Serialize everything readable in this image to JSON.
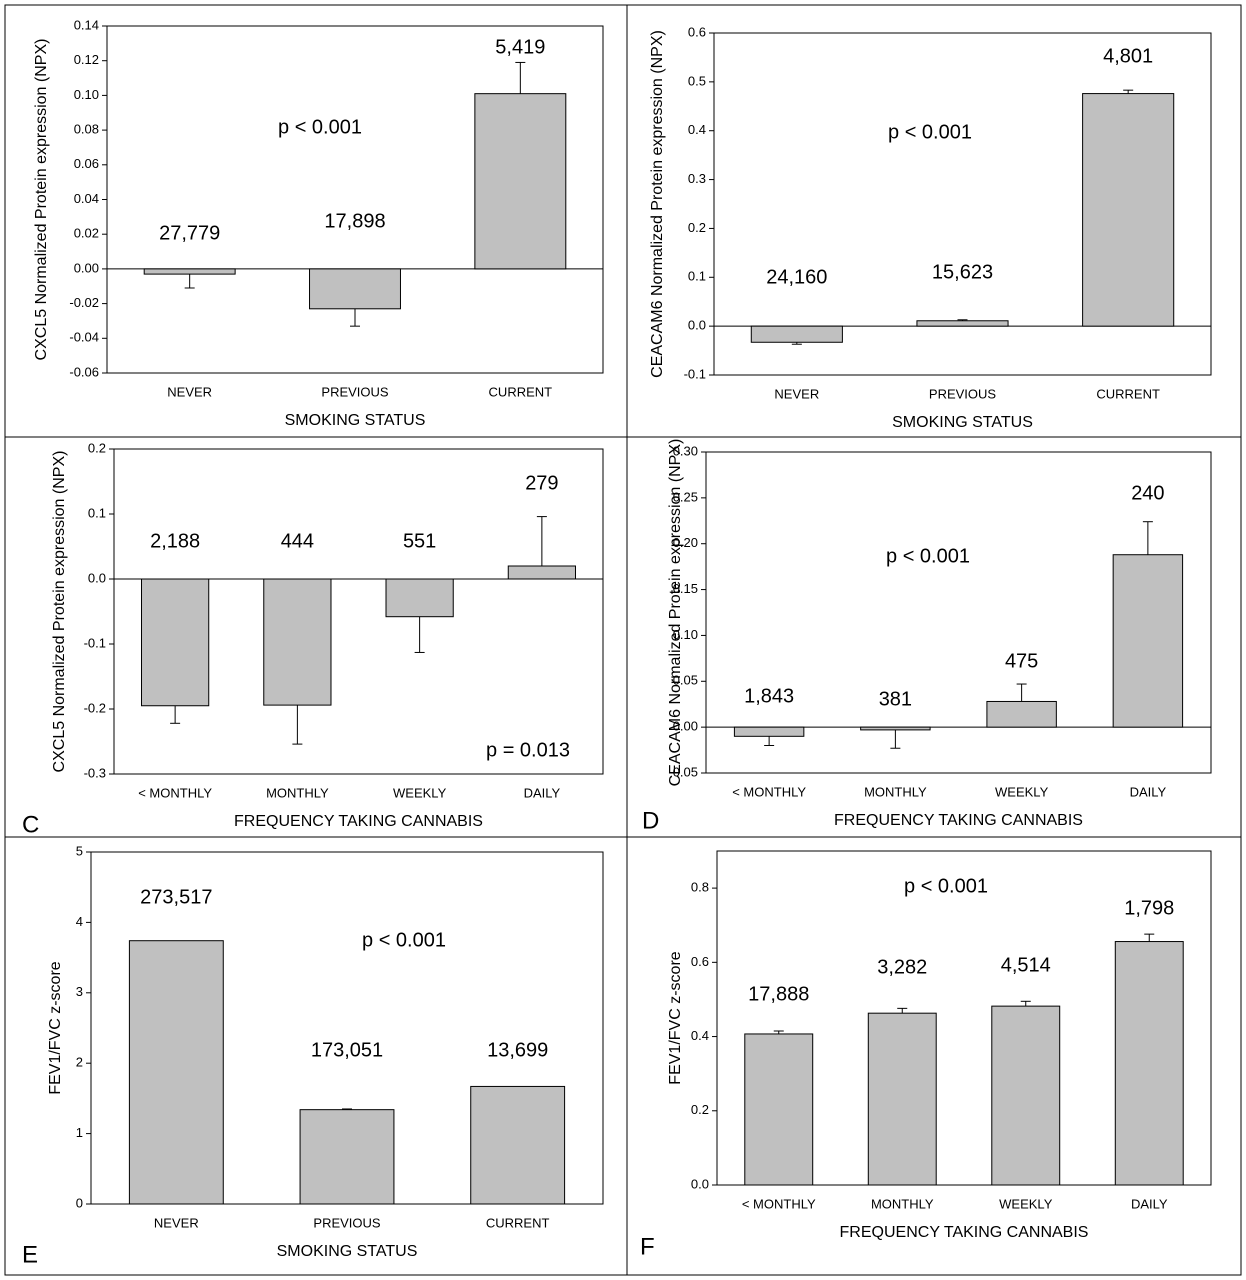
{
  "chart_data": [
    {
      "type": "bar",
      "xlabel": "SMOKING STATUS",
      "ylabel": "CXCL5 Normalized Protein expression (NPX)",
      "categories": [
        "NEVER",
        "PREVIOUS",
        "CURRENT"
      ],
      "values": [
        -0.003,
        -0.023,
        0.101
      ],
      "errors": [
        0.008,
        0.01,
        0.018
      ],
      "bar_labels": [
        "27,779",
        "17,898",
        "5,419"
      ],
      "annotation": "p < 0.001",
      "color": "#c0c0c0",
      "ylim": [
        -0.06,
        0.14
      ],
      "yticks": [
        -0.06,
        -0.04,
        -0.02,
        {
          "value": 0,
          "label": "0.00"
        },
        0.02,
        0.04,
        0.06,
        0.08,
        {
          "value": 0.1,
          "label": "0.10"
        },
        0.12,
        0.14
      ]
    },
    {
      "type": "bar",
      "xlabel": "SMOKING STATUS",
      "ylabel": "CEACAM6 Normalized Protein expression (NPX)",
      "categories": [
        "NEVER",
        "PREVIOUS",
        "CURRENT"
      ],
      "values": [
        -0.033,
        0.011,
        0.476
      ],
      "errors": [
        0.004,
        0.002,
        0.007
      ],
      "bar_labels": [
        "24,160",
        "15,623",
        "4,801"
      ],
      "annotation": "p < 0.001",
      "color": "#c0c0c0",
      "ylim": [
        -0.1,
        0.6
      ],
      "yticks": [
        -0.1,
        {
          "value": 0,
          "label": "0.0"
        },
        0.1,
        0.2,
        0.3,
        0.4,
        0.5,
        0.6
      ]
    },
    {
      "type": "bar",
      "panel_label": "C",
      "xlabel": "FREQUENCY TAKING CANNABIS",
      "ylabel": "CXCL5 Normalized Protein expression (NPX)",
      "categories": [
        "< MONTHLY",
        "MONTHLY",
        "WEEKLY",
        "DAILY"
      ],
      "values": [
        -0.195,
        -0.194,
        -0.058,
        0.02
      ],
      "errors": [
        0.027,
        0.06,
        0.055,
        0.076
      ],
      "bar_labels": [
        "2,188",
        "444",
        "551",
        "279"
      ],
      "annotation": "p = 0.013",
      "color": "#c0c0c0",
      "ylim": [
        -0.3,
        0.2
      ],
      "yticks": [
        -0.3,
        -0.2,
        -0.1,
        {
          "value": 0,
          "label": "0.0"
        },
        0.1,
        0.2
      ]
    },
    {
      "type": "bar",
      "panel_label": "D",
      "xlabel": "FREQUENCY TAKING CANNABIS",
      "ylabel": "CEACAM6 Normalized Protein expression (NPX)",
      "categories": [
        "< MONTHLY",
        "MONTHLY",
        "WEEKLY",
        "DAILY"
      ],
      "values": [
        -0.01,
        -0.003,
        0.028,
        0.188
      ],
      "errors": [
        0.01,
        0.02,
        0.019,
        0.036
      ],
      "bar_labels": [
        "1,843",
        "381",
        "475",
        "240"
      ],
      "annotation": "p < 0.001",
      "color": "#c0c0c0",
      "ylim": [
        -0.05,
        0.3
      ],
      "yticks": [
        -0.05,
        {
          "value": 0,
          "label": "0.00"
        },
        0.05,
        {
          "value": 0.1,
          "label": "0.10"
        },
        0.15,
        {
          "value": 0.2,
          "label": "0.20"
        },
        0.25,
        {
          "value": 0.3,
          "label": "0.30"
        }
      ]
    },
    {
      "type": "bar",
      "panel_label": "E",
      "xlabel": "SMOKING STATUS",
      "ylabel": "FEV1/FVC z-score",
      "categories": [
        "NEVER",
        "PREVIOUS",
        "CURRENT"
      ],
      "values": [
        3.74,
        1.34,
        1.67
      ],
      "errors": [
        0,
        0.01,
        0
      ],
      "bar_labels": [
        "273,517",
        "173,051",
        "13,699"
      ],
      "annotation": "p < 0.001",
      "color": "#c0c0c0",
      "ylim": [
        0,
        5
      ],
      "yticks": [
        0,
        1,
        2,
        3,
        4,
        5
      ]
    },
    {
      "type": "bar",
      "panel_label": "F",
      "xlabel": "FREQUENCY TAKING CANNABIS",
      "ylabel": "FEV1/FVC z-score",
      "categories": [
        "< MONTHLY",
        "MONTHLY",
        "WEEKLY",
        "DAILY"
      ],
      "values": [
        0.407,
        0.463,
        0.482,
        0.656
      ],
      "errors": [
        0.008,
        0.013,
        0.013,
        0.02
      ],
      "bar_labels": [
        "17,888",
        "3,282",
        "4,514",
        "1,798"
      ],
      "annotation": "p < 0.001",
      "color": "#c0c0c0",
      "ylim": [
        0,
        0.9
      ],
      "yticks": [
        {
          "value": 0,
          "label": "0.0"
        },
        0.2,
        0.4,
        0.6,
        0.8
      ]
    }
  ]
}
